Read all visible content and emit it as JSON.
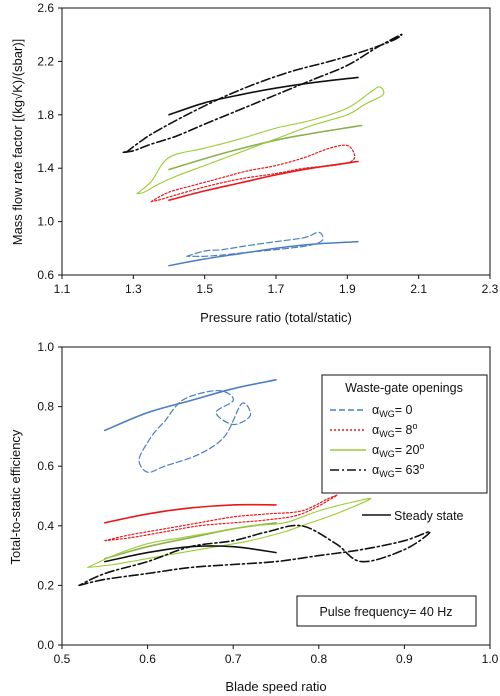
{
  "chart_data": [
    {
      "type": "line",
      "xlabel": "Pressure ratio (total/static)",
      "ylabel": "Mass flow rate factor [(kg√K)/(sbar)]",
      "xlim": [
        1.1,
        2.3
      ],
      "ylim": [
        0.6,
        2.6
      ],
      "xticks": [
        1.1,
        1.3,
        1.5,
        1.7,
        1.9,
        2.1,
        2.3
      ],
      "xtick_labels": [
        "1.1",
        "1.3",
        "1.5",
        "1.7",
        "1.9",
        "2.1",
        "2.3"
      ],
      "yticks": [
        0.6,
        1.0,
        1.4,
        1.8,
        2.2,
        2.6
      ],
      "ytick_labels": [
        "0.6",
        "1.0",
        "1.4",
        "1.8",
        "2.2",
        "2.6"
      ],
      "grid": false,
      "series": [
        {
          "color": "#4a7ec2",
          "dash": "none",
          "width": 1.5,
          "closed": false,
          "x": [
            1.4,
            1.5,
            1.6,
            1.7,
            1.8,
            1.93
          ],
          "y": [
            0.67,
            0.72,
            0.76,
            0.8,
            0.83,
            0.85
          ]
        },
        {
          "color": "#4a7ec2",
          "dash": "6,3",
          "width": 1.2,
          "closed": true,
          "x": [
            1.45,
            1.5,
            1.55,
            1.62,
            1.7,
            1.78,
            1.82,
            1.83,
            1.79,
            1.7,
            1.62,
            1.55,
            1.5,
            1.47
          ],
          "y": [
            0.74,
            0.78,
            0.79,
            0.82,
            0.85,
            0.88,
            0.92,
            0.86,
            0.82,
            0.79,
            0.77,
            0.75,
            0.74,
            0.74
          ]
        },
        {
          "color": "#e8191c",
          "dash": "none",
          "width": 1.6,
          "closed": false,
          "x": [
            1.4,
            1.5,
            1.6,
            1.7,
            1.8,
            1.93
          ],
          "y": [
            1.16,
            1.23,
            1.29,
            1.35,
            1.4,
            1.45
          ]
        },
        {
          "color": "#e8191c",
          "dash": "2,2",
          "width": 1.2,
          "closed": true,
          "x": [
            1.35,
            1.4,
            1.48,
            1.55,
            1.62,
            1.7,
            1.78,
            1.85,
            1.9,
            1.92,
            1.91,
            1.86,
            1.78,
            1.7,
            1.6,
            1.5,
            1.42,
            1.37
          ],
          "y": [
            1.15,
            1.22,
            1.28,
            1.33,
            1.38,
            1.42,
            1.48,
            1.55,
            1.57,
            1.5,
            1.45,
            1.42,
            1.4,
            1.36,
            1.32,
            1.26,
            1.2,
            1.16
          ]
        },
        {
          "color": "#8fb050",
          "dash": "none",
          "width": 1.6,
          "closed": false,
          "x": [
            1.4,
            1.55,
            1.7,
            1.8,
            1.94
          ],
          "y": [
            1.39,
            1.51,
            1.61,
            1.66,
            1.72
          ]
        },
        {
          "color": "#9acd32",
          "dash": "none",
          "width": 1.1,
          "closed": true,
          "x": [
            1.31,
            1.35,
            1.4,
            1.5,
            1.6,
            1.7,
            1.8,
            1.9,
            1.96,
            1.99,
            2.0,
            1.95,
            1.9,
            1.8,
            1.7,
            1.6,
            1.5,
            1.42,
            1.37,
            1.33,
            1.31
          ],
          "y": [
            1.21,
            1.3,
            1.48,
            1.55,
            1.62,
            1.7,
            1.76,
            1.85,
            1.96,
            2.01,
            1.95,
            1.88,
            1.8,
            1.72,
            1.62,
            1.52,
            1.42,
            1.34,
            1.28,
            1.22,
            1.21
          ]
        },
        {
          "color": "#111111",
          "dash": "none",
          "width": 1.6,
          "closed": false,
          "x": [
            1.4,
            1.5,
            1.6,
            1.7,
            1.8,
            1.93
          ],
          "y": [
            1.8,
            1.89,
            1.95,
            2.0,
            2.04,
            2.08
          ]
        },
        {
          "color": "#111111",
          "dash": "9,3,2,3",
          "width": 1.6,
          "closed": true,
          "x": [
            1.28,
            1.32,
            1.36,
            1.45,
            1.55,
            1.65,
            1.75,
            1.85,
            1.95,
            2.03,
            2.05,
            1.98,
            1.9,
            1.8,
            1.7,
            1.6,
            1.5,
            1.42,
            1.35,
            1.3,
            1.27,
            1.28
          ],
          "y": [
            1.52,
            1.6,
            1.67,
            1.8,
            1.93,
            2.04,
            2.13,
            2.2,
            2.28,
            2.36,
            2.4,
            2.3,
            2.17,
            2.06,
            1.95,
            1.84,
            1.73,
            1.64,
            1.58,
            1.53,
            1.52,
            1.52
          ]
        }
      ]
    },
    {
      "type": "line",
      "xlabel": "Blade speed ratio",
      "ylabel": "Total-to-static efficiency",
      "xlim": [
        0.5,
        1.0
      ],
      "ylim": [
        0.0,
        1.0
      ],
      "xticks": [
        0.5,
        0.6,
        0.7,
        0.8,
        0.9,
        1.0
      ],
      "xtick_labels": [
        "0.5",
        "0.6",
        "0.7",
        "0.8",
        "0.9",
        "1.0"
      ],
      "yticks": [
        0.0,
        0.2,
        0.4,
        0.6,
        0.8,
        1.0
      ],
      "ytick_labels": [
        "0.0",
        "0.2",
        "0.4",
        "0.6",
        "0.8",
        "1.0"
      ],
      "grid": false,
      "legend": {
        "title": "Waste-gate openings",
        "placement": "top-right",
        "entries": [
          {
            "main": "α",
            "sub": "WG",
            "label": "= 0",
            "sup": "",
            "color": "#4a7ec2",
            "dash": "6,3"
          },
          {
            "main": "α",
            "sub": "WG",
            "label": "= 8",
            "sup": "o",
            "color": "#e8191c",
            "dash": "2,2"
          },
          {
            "main": "α",
            "sub": "WG",
            "label": "= 20",
            "sup": "o",
            "color": "#9acd32",
            "dash": "none"
          },
          {
            "main": "α",
            "sub": "WG",
            "label": "= 63",
            "sup": "o",
            "color": "#111111",
            "dash": "9,3,2,3"
          }
        ]
      },
      "steady_label": "Steady state",
      "annotation": "Pulse frequency= 40 Hz",
      "series": [
        {
          "color": "#4a7ec2",
          "dash": "none",
          "width": 1.6,
          "closed": false,
          "x": [
            0.55,
            0.6,
            0.65,
            0.7,
            0.75
          ],
          "y": [
            0.72,
            0.78,
            0.82,
            0.86,
            0.89
          ]
        },
        {
          "color": "#4a7ec2",
          "dash": "6,3",
          "width": 1.2,
          "closed": true,
          "x": [
            0.62,
            0.64,
            0.67,
            0.69,
            0.7,
            0.68,
            0.7,
            0.72,
            0.71,
            0.69,
            0.66,
            0.62,
            0.6,
            0.59,
            0.6,
            0.61,
            0.62
          ],
          "y": [
            0.75,
            0.82,
            0.85,
            0.85,
            0.82,
            0.78,
            0.74,
            0.77,
            0.81,
            0.7,
            0.64,
            0.6,
            0.58,
            0.62,
            0.68,
            0.72,
            0.75
          ]
        },
        {
          "color": "#e8191c",
          "dash": "none",
          "width": 1.6,
          "closed": false,
          "x": [
            0.55,
            0.6,
            0.65,
            0.7,
            0.75
          ],
          "y": [
            0.41,
            0.44,
            0.46,
            0.47,
            0.47
          ]
        },
        {
          "color": "#e8191c",
          "dash": "2,2",
          "width": 1.2,
          "closed": true,
          "x": [
            0.55,
            0.58,
            0.62,
            0.66,
            0.7,
            0.74,
            0.78,
            0.81,
            0.82,
            0.78,
            0.74,
            0.7,
            0.66,
            0.62,
            0.58,
            0.55
          ],
          "y": [
            0.35,
            0.37,
            0.39,
            0.41,
            0.43,
            0.44,
            0.45,
            0.49,
            0.5,
            0.44,
            0.42,
            0.41,
            0.4,
            0.38,
            0.36,
            0.35
          ]
        },
        {
          "color": "#8fb050",
          "dash": "none",
          "width": 1.6,
          "closed": false,
          "x": [
            0.55,
            0.6,
            0.65,
            0.7,
            0.75
          ],
          "y": [
            0.29,
            0.33,
            0.36,
            0.39,
            0.41
          ]
        },
        {
          "color": "#9acd32",
          "dash": "none",
          "width": 1.1,
          "closed": true,
          "x": [
            0.53,
            0.56,
            0.6,
            0.64,
            0.68,
            0.72,
            0.76,
            0.8,
            0.84,
            0.86,
            0.82,
            0.78,
            0.76,
            0.72,
            0.68,
            0.64,
            0.6,
            0.56,
            0.53
          ],
          "y": [
            0.26,
            0.3,
            0.34,
            0.36,
            0.38,
            0.4,
            0.41,
            0.45,
            0.48,
            0.49,
            0.44,
            0.4,
            0.38,
            0.35,
            0.33,
            0.31,
            0.29,
            0.27,
            0.26
          ]
        },
        {
          "color": "#111111",
          "dash": "none",
          "width": 1.6,
          "closed": false,
          "x": [
            0.55,
            0.6,
            0.65,
            0.7,
            0.75
          ],
          "y": [
            0.28,
            0.31,
            0.33,
            0.33,
            0.31
          ]
        },
        {
          "color": "#111111",
          "dash": "9,3,2,3",
          "width": 1.6,
          "closed": true,
          "x": [
            0.52,
            0.55,
            0.6,
            0.65,
            0.7,
            0.75,
            0.8,
            0.85,
            0.9,
            0.93,
            0.9,
            0.85,
            0.82,
            0.78,
            0.74,
            0.7,
            0.65,
            0.6,
            0.55,
            0.52
          ],
          "y": [
            0.2,
            0.22,
            0.24,
            0.26,
            0.27,
            0.28,
            0.3,
            0.32,
            0.35,
            0.38,
            0.32,
            0.28,
            0.34,
            0.4,
            0.38,
            0.35,
            0.33,
            0.28,
            0.24,
            0.2
          ]
        }
      ]
    }
  ]
}
